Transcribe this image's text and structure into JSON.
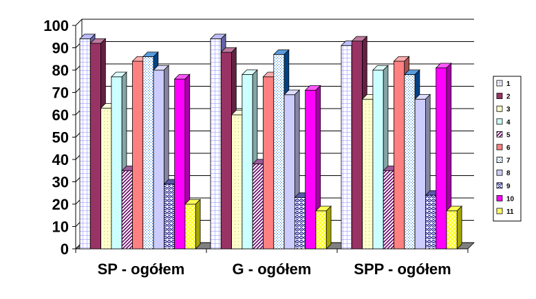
{
  "chart_data": {
    "type": "bar",
    "categories": [
      "SP - ogółem",
      "G - ogółem",
      "SPP - ogółem"
    ],
    "ylim": [
      0,
      100
    ],
    "yticks": [
      0,
      10,
      20,
      30,
      40,
      50,
      60,
      70,
      80,
      90,
      100
    ],
    "grid": true,
    "legend_position": "right",
    "series": [
      {
        "name": "1",
        "color": "#9999ff",
        "pattern": "grid",
        "values": [
          94,
          94,
          91
        ]
      },
      {
        "name": "2",
        "color": "#993366",
        "pattern": "solid",
        "values": [
          92,
          88,
          93
        ]
      },
      {
        "name": "3",
        "color": "#ffffcc",
        "pattern": "dots",
        "values": [
          63,
          60,
          67
        ]
      },
      {
        "name": "4",
        "color": "#ccffff",
        "pattern": "solid",
        "values": [
          77,
          78,
          80
        ]
      },
      {
        "name": "5",
        "color": "#660066",
        "pattern": "diag",
        "values": [
          35,
          38,
          35
        ]
      },
      {
        "name": "6",
        "color": "#ff8080",
        "pattern": "solid",
        "values": [
          84,
          77,
          84
        ]
      },
      {
        "name": "7",
        "color": "#0066cc",
        "pattern": "fine-dots",
        "values": [
          86,
          87,
          78
        ]
      },
      {
        "name": "8",
        "color": "#ccccff",
        "pattern": "solid",
        "values": [
          80,
          69,
          67
        ]
      },
      {
        "name": "9",
        "color": "#000080",
        "pattern": "zigzag",
        "values": [
          29,
          23,
          24
        ]
      },
      {
        "name": "10",
        "color": "#ff00ff",
        "pattern": "solid",
        "values": [
          76,
          71,
          81
        ]
      },
      {
        "name": "11",
        "color": "#ffff00",
        "pattern": "crosshatch",
        "values": [
          20,
          17,
          17
        ]
      }
    ]
  }
}
